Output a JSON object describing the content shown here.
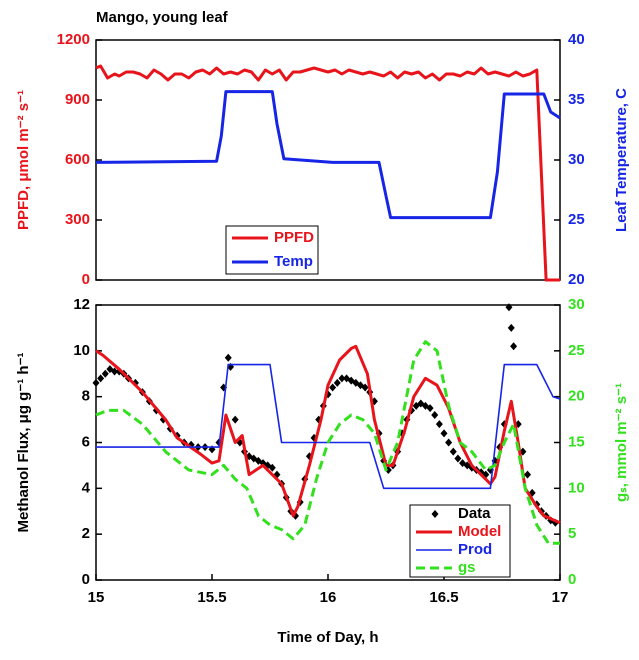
{
  "chart_data": [
    {
      "type": "line",
      "title": "Mango, young leaf",
      "ylabel": "PPFD, μmol m⁻² s⁻¹",
      "y2label": "Leaf Temperature, C",
      "xlim": [
        15,
        17
      ],
      "ylim": [
        0,
        1200
      ],
      "yticks": [
        0,
        300,
        600,
        900,
        1200
      ],
      "y2lim": [
        20,
        40
      ],
      "y2ticks": [
        20,
        25,
        30,
        35,
        40
      ],
      "legend": "center",
      "series": [
        {
          "name": "PPFD",
          "color": "#e8141b",
          "width": 3,
          "x": [
            15,
            15.02,
            15.05,
            15.08,
            15.1,
            15.13,
            15.16,
            15.19,
            15.22,
            15.25,
            15.28,
            15.31,
            15.34,
            15.37,
            15.4,
            15.43,
            15.46,
            15.49,
            15.52,
            15.55,
            15.58,
            15.61,
            15.64,
            15.67,
            15.7,
            15.73,
            15.76,
            15.79,
            15.82,
            15.85,
            15.88,
            15.91,
            15.94,
            15.97,
            16,
            16.03,
            16.06,
            16.09,
            16.12,
            16.15,
            16.18,
            16.21,
            16.24,
            16.27,
            16.3,
            16.33,
            16.36,
            16.39,
            16.42,
            16.45,
            16.48,
            16.51,
            16.54,
            16.57,
            16.6,
            16.63,
            16.66,
            16.69,
            16.72,
            16.75,
            16.78,
            16.81,
            16.84,
            16.87,
            16.9,
            16.94,
            17
          ],
          "values": [
            1060,
            1070,
            1010,
            1030,
            1020,
            1040,
            1040,
            1030,
            1010,
            1050,
            1030,
            1000,
            1030,
            1030,
            1010,
            1040,
            1050,
            1030,
            1060,
            1030,
            1040,
            1030,
            1050,
            1040,
            1000,
            1050,
            1030,
            1050,
            1000,
            1040,
            1040,
            1050,
            1060,
            1050,
            1040,
            1050,
            1030,
            1050,
            1040,
            1030,
            1040,
            1030,
            1020,
            1040,
            1010,
            1040,
            1030,
            1040,
            1010,
            1030,
            1000,
            1030,
            1030,
            1020,
            1040,
            1030,
            1060,
            1030,
            1040,
            1030,
            1020,
            1040,
            1020,
            1030,
            1050,
            0,
            0
          ]
        },
        {
          "name": "Temp",
          "color": "#1725e6",
          "width": 3,
          "axis": "y2",
          "x": [
            15,
            15.52,
            15.54,
            15.56,
            15.76,
            15.78,
            15.81,
            16.02,
            16.22,
            16.25,
            16.27,
            16.7,
            16.73,
            16.76,
            16.93,
            16.96,
            17
          ],
          "values": [
            29.8,
            29.9,
            32,
            35.7,
            35.7,
            33,
            30.1,
            29.8,
            29.8,
            27,
            25.2,
            25.2,
            29,
            35.5,
            35.5,
            34,
            33.5
          ]
        }
      ]
    },
    {
      "type": "line",
      "xlabel": "Time of Day, h",
      "ylabel": "Methanol Flux, μg g⁻¹ h⁻¹",
      "y2label": "gₛ, mmol m⁻² s⁻¹",
      "xlim": [
        15,
        17
      ],
      "xticks": [
        15,
        15.5,
        16,
        16.5,
        17
      ],
      "ylim": [
        0,
        12
      ],
      "yticks": [
        0,
        2,
        4,
        6,
        8,
        10,
        12
      ],
      "y2lim": [
        0,
        30
      ],
      "y2ticks": [
        0,
        5,
        10,
        15,
        20,
        25,
        30
      ],
      "legend": "lower right",
      "series": [
        {
          "name": "Data",
          "color": "#000000",
          "marker": "diamond",
          "x": [
            15,
            15.02,
            15.04,
            15.06,
            15.08,
            15.1,
            15.12,
            15.14,
            15.17,
            15.2,
            15.23,
            15.26,
            15.29,
            15.32,
            15.35,
            15.38,
            15.41,
            15.44,
            15.47,
            15.5,
            15.53,
            15.55,
            15.57,
            15.58,
            15.6,
            15.62,
            15.64,
            15.66,
            15.68,
            15.7,
            15.72,
            15.74,
            15.76,
            15.78,
            15.8,
            15.82,
            15.84,
            15.86,
            15.88,
            15.9,
            15.92,
            15.94,
            15.96,
            15.98,
            16,
            16.02,
            16.04,
            16.06,
            16.08,
            16.1,
            16.12,
            16.14,
            16.16,
            16.18,
            16.2,
            16.22,
            16.24,
            16.26,
            16.28,
            16.3,
            16.32,
            16.34,
            16.36,
            16.38,
            16.4,
            16.42,
            16.44,
            16.46,
            16.48,
            16.5,
            16.52,
            16.54,
            16.56,
            16.58,
            16.6,
            16.62,
            16.64,
            16.66,
            16.68,
            16.7,
            16.72,
            16.74,
            16.76,
            16.78,
            16.79,
            16.8,
            16.82,
            16.84,
            16.86,
            16.88,
            16.9,
            16.92,
            16.94,
            16.96,
            16.98
          ],
          "values": [
            8.6,
            8.8,
            9,
            9.2,
            9.1,
            9.1,
            9,
            8.8,
            8.6,
            8.2,
            7.8,
            7.4,
            7,
            6.6,
            6.3,
            6,
            5.9,
            5.8,
            5.8,
            5.7,
            6,
            8.4,
            9.7,
            9.3,
            7,
            6,
            5.6,
            5.4,
            5.3,
            5.2,
            5.1,
            5,
            4.9,
            4.6,
            4.2,
            3.6,
            3,
            2.8,
            3.4,
            4.4,
            5.4,
            6.2,
            7,
            7.6,
            8.1,
            8.4,
            8.6,
            8.8,
            8.8,
            8.7,
            8.6,
            8.5,
            8.4,
            8.2,
            7.8,
            6.4,
            5.2,
            4.8,
            5,
            5.6,
            6.4,
            7,
            7.4,
            7.6,
            7.7,
            7.6,
            7.5,
            7.2,
            6.8,
            6.4,
            6,
            5.6,
            5.3,
            5.1,
            5,
            4.9,
            4.8,
            4.7,
            4.6,
            4.8,
            5.2,
            5.8,
            6.8,
            11.9,
            11,
            10.2,
            6.8,
            5.6,
            4.6,
            3.8,
            3.3,
            3,
            2.8,
            2.6,
            2.5
          ]
        },
        {
          "name": "Model",
          "color": "#e8141b",
          "width": 3,
          "x": [
            15,
            15.03,
            15.1,
            15.2,
            15.3,
            15.35,
            15.45,
            15.5,
            15.53,
            15.56,
            15.6,
            15.63,
            15.66,
            15.72,
            15.8,
            15.85,
            15.87,
            15.92,
            15.97,
            16,
            16.05,
            16.1,
            16.12,
            16.17,
            16.2,
            16.25,
            16.28,
            16.33,
            16.37,
            16.42,
            16.47,
            16.52,
            16.57,
            16.62,
            16.67,
            16.7,
            16.72,
            16.76,
            16.79,
            16.82,
            16.85,
            16.9,
            16.93,
            17
          ],
          "values": [
            10,
            9.8,
            9.2,
            8.2,
            7,
            6.2,
            5.5,
            5.1,
            5.2,
            7.2,
            6,
            6.3,
            4.6,
            5,
            4.2,
            2.8,
            3.2,
            5,
            7,
            8.5,
            9.6,
            10.1,
            10.2,
            9,
            7,
            5,
            5,
            6.5,
            8,
            8.8,
            8.5,
            7.5,
            6,
            5,
            4.5,
            4.2,
            4.5,
            6.5,
            7.8,
            6,
            4,
            3.2,
            2.8,
            2.5
          ]
        },
        {
          "name": "Prod",
          "color": "#1725e6",
          "width": 1.6,
          "x": [
            15,
            15.53,
            15.57,
            15.75,
            15.8,
            16.18,
            16.24,
            16.7,
            16.76,
            16.9,
            16.97,
            17
          ],
          "values": [
            5.8,
            5.8,
            9.4,
            9.4,
            6,
            6,
            4,
            4,
            9.4,
            9.4,
            8,
            7.9
          ]
        },
        {
          "name": "gs",
          "color": "#33e01e",
          "width": 3,
          "dash": true,
          "axis": "y2",
          "x": [
            15,
            15.05,
            15.12,
            15.2,
            15.3,
            15.4,
            15.5,
            15.55,
            15.6,
            15.65,
            15.7,
            15.75,
            15.8,
            15.85,
            15.9,
            15.95,
            16,
            16.05,
            16.1,
            16.15,
            16.2,
            16.25,
            16.3,
            16.37,
            16.42,
            16.47,
            16.52,
            16.57,
            16.62,
            16.68,
            16.72,
            16.76,
            16.8,
            16.85,
            16.9,
            16.95,
            17
          ],
          "values": [
            18,
            18.5,
            18.5,
            17,
            14,
            12,
            11.5,
            12.5,
            11,
            10,
            7,
            6,
            5.5,
            4.5,
            6,
            11,
            15,
            17,
            18,
            17.5,
            16,
            12,
            15,
            24,
            26,
            25,
            19,
            15,
            14,
            12,
            12.5,
            15,
            17,
            10,
            6,
            4,
            4
          ]
        }
      ]
    }
  ]
}
